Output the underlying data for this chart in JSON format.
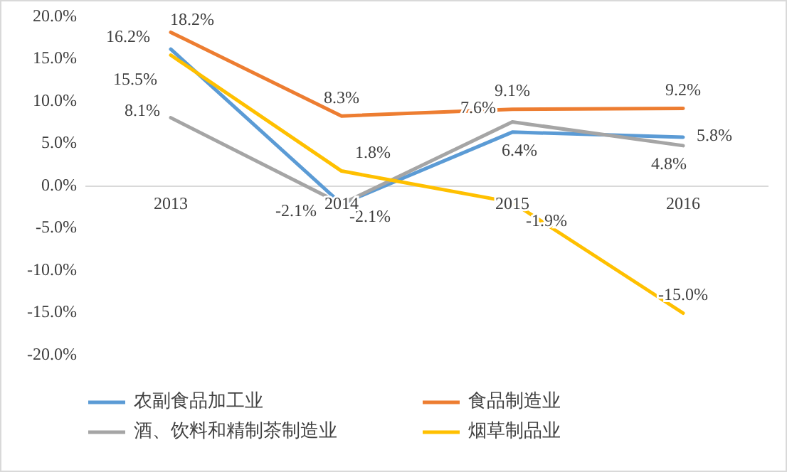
{
  "chart_data": {
    "type": "line",
    "categories": [
      "2013",
      "2014",
      "2015",
      "2016"
    ],
    "series": [
      {
        "name": "农副食品加工业",
        "color": "#5b9bd5",
        "values": [
          16.2,
          -2.1,
          6.4,
          5.8
        ],
        "value_labels": [
          "16.2%",
          "-2.1%",
          "6.4%",
          "5.8%"
        ]
      },
      {
        "name": "食品制造业",
        "color": "#ed7d31",
        "values": [
          18.2,
          8.3,
          9.1,
          9.2
        ],
        "value_labels": [
          "18.2%",
          "8.3%",
          "9.1%",
          "9.2%"
        ]
      },
      {
        "name": "酒、饮料和精制茶制造业",
        "color": "#a5a5a5",
        "values": [
          8.1,
          -2.1,
          7.6,
          4.8
        ],
        "value_labels": [
          "8.1%",
          "-2.1%",
          "7.6%",
          "4.8%"
        ]
      },
      {
        "name": "烟草制品业",
        "color": "#ffc000",
        "values": [
          15.5,
          1.8,
          -1.9,
          -15.0
        ],
        "value_labels": [
          "15.5%",
          "1.8%",
          "-1.9%",
          "-15.0%"
        ]
      }
    ],
    "ylim": [
      -20,
      20
    ],
    "yticks": [
      {
        "value": -20,
        "label": "-20.0%"
      },
      {
        "value": -15,
        "label": "-15.0%"
      },
      {
        "value": -10,
        "label": "-10.0%"
      },
      {
        "value": -5,
        "label": "-5.0%"
      },
      {
        "value": 0,
        "label": "0.0%"
      },
      {
        "value": 5,
        "label": "5.0%"
      },
      {
        "value": 10,
        "label": "10.0%"
      },
      {
        "value": 15,
        "label": "15.0%"
      },
      {
        "value": 20,
        "label": "20.0%"
      }
    ],
    "legend": "bottom",
    "marker": "none",
    "line_style": "solid"
  }
}
